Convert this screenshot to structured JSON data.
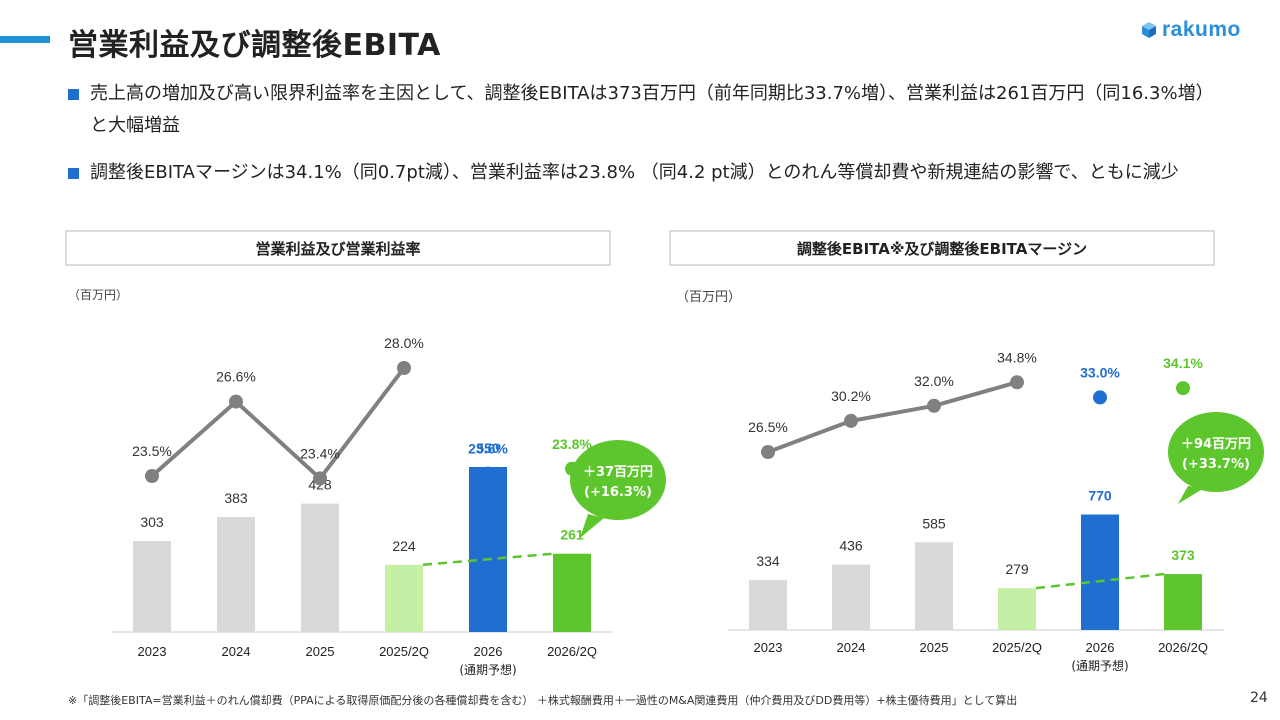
{
  "title": "営業利益及び調整後EBITA",
  "logo_text": "rakumo",
  "bullets": [
    "売上高の増加及び高い限界利益率を主因として、調整後EBITAは373百万円（前年同期比33.7%増）、営業利益は261百万円（同16.3%増）と大幅増益",
    "調整後EBITAマージンは34.1%（同0.7pt減）、営業利益率は23.8% （同4.2 pt減）とのれん等償却費や新規連結の影響で、ともに減少"
  ],
  "colors": {
    "accent": "#1f8fd6",
    "bar_gray": "#d9d9d9",
    "bar_light_green": "#c5efa5",
    "bar_blue": "#1f6fd0",
    "bar_green": "#5cc62c",
    "line_gray": "#808080",
    "bubble_green": "#5cc62c"
  },
  "chart_data": [
    {
      "type": "bar",
      "title": "営業利益及び営業利益率",
      "unit": "（百万円）",
      "categories": [
        "2023",
        "2024",
        "2025",
        "2025/2Q",
        "2026",
        "2026/2Q"
      ],
      "category_sub": [
        "",
        "",
        "",
        "",
        "(通期予想)",
        ""
      ],
      "values": [
        303,
        383,
        428,
        224,
        550,
        261
      ],
      "value_labels": [
        "303",
        "383",
        "428",
        "224",
        "550",
        "261"
      ],
      "bar_colors": [
        "gray",
        "gray",
        "gray",
        "light_green",
        "blue",
        "green"
      ],
      "ratio": {
        "values": [
          23.5,
          26.6,
          23.4,
          28.0,
          23.6,
          23.8
        ],
        "labels": [
          "23.5%",
          "26.6%",
          "23.4%",
          "28.0%",
          "23.6%",
          "23.8%"
        ],
        "line_to_index": 3
      },
      "bubble": [
        "＋37百万円",
        "(+16.3%)"
      ],
      "ylim": [
        0,
        1000
      ]
    },
    {
      "type": "bar",
      "title": "調整後EBITA※及び調整後EBITAマージン",
      "unit": "（百万円）",
      "categories": [
        "2023",
        "2024",
        "2025",
        "2025/2Q",
        "2026",
        "2026/2Q"
      ],
      "category_sub": [
        "",
        "",
        "",
        "",
        "(通期予想)",
        ""
      ],
      "values": [
        334,
        436,
        585,
        279,
        770,
        373
      ],
      "value_labels": [
        "334",
        "436",
        "585",
        "279",
        "770",
        "373"
      ],
      "bar_colors": [
        "gray",
        "gray",
        "gray",
        "light_green",
        "blue",
        "green"
      ],
      "ratio": {
        "values": [
          26.5,
          30.2,
          32.0,
          34.8,
          33.0,
          34.1
        ],
        "labels": [
          "26.5%",
          "30.2%",
          "32.0%",
          "34.8%",
          "33.0%",
          "34.1%"
        ],
        "line_to_index": 3
      },
      "bubble": [
        "＋94百万円",
        "(+33.7%)"
      ],
      "ylim": [
        0,
        1000
      ]
    }
  ],
  "footnote": "※「調整後EBITA=営業利益＋のれん償却費（PPAによる取得原価配分後の各種償却費を含む） ＋株式報酬費用＋一過性のM&A関連費用（仲介費用及びDD費用等）+株主優待費用」として算出",
  "page_number": "24"
}
